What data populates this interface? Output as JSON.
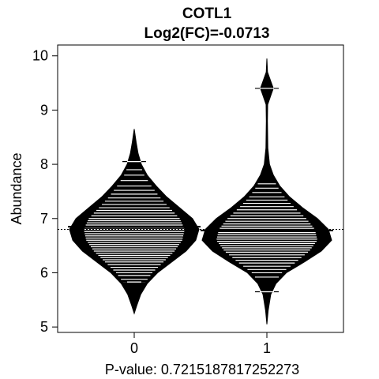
{
  "chart_data": {
    "type": "beanplot",
    "title": "COTL1",
    "subtitle": "Log2(FC)=-0.0713",
    "xlabel": "P-value: 0.7215187817252273",
    "ylabel": "Abundance",
    "categories": [
      "0",
      "1"
    ],
    "yticks": [
      5,
      6,
      7,
      8,
      9,
      10
    ],
    "ylim": [
      4.9,
      10.2
    ],
    "overall_mean": 6.8,
    "groups": [
      {
        "category": "0",
        "mean": 6.85,
        "min": 5.25,
        "max": 8.65,
        "density": [
          [
            5.25,
            0.0
          ],
          [
            5.4,
            0.04
          ],
          [
            5.6,
            0.1
          ],
          [
            5.8,
            0.2
          ],
          [
            6.0,
            0.36
          ],
          [
            6.2,
            0.58
          ],
          [
            6.4,
            0.8
          ],
          [
            6.6,
            0.95
          ],
          [
            6.8,
            1.0
          ],
          [
            7.0,
            0.9
          ],
          [
            7.2,
            0.7
          ],
          [
            7.4,
            0.5
          ],
          [
            7.6,
            0.34
          ],
          [
            7.8,
            0.2
          ],
          [
            8.0,
            0.11
          ],
          [
            8.2,
            0.06
          ],
          [
            8.4,
            0.03
          ],
          [
            8.65,
            0.0
          ]
        ],
        "observations": [
          5.83,
          5.88,
          5.95,
          6.0,
          6.05,
          6.1,
          6.15,
          6.2,
          6.24,
          6.28,
          6.32,
          6.36,
          6.4,
          6.44,
          6.48,
          6.52,
          6.56,
          6.6,
          6.64,
          6.68,
          6.72,
          6.76,
          6.8,
          6.84,
          6.88,
          6.92,
          6.96,
          7.0,
          7.05,
          7.1,
          7.15,
          7.2,
          7.26,
          7.32,
          7.38,
          7.45,
          7.52,
          7.6,
          7.7,
          7.8,
          7.9,
          8.05
        ],
        "extreme_ticks": [
          5.83,
          8.05
        ]
      },
      {
        "category": "1",
        "mean": 6.78,
        "min": 5.05,
        "max": 9.95,
        "density": [
          [
            5.05,
            0.0
          ],
          [
            5.3,
            0.02
          ],
          [
            5.6,
            0.06
          ],
          [
            5.8,
            0.14
          ],
          [
            6.0,
            0.3
          ],
          [
            6.2,
            0.58
          ],
          [
            6.4,
            0.84
          ],
          [
            6.6,
            1.0
          ],
          [
            6.8,
            0.95
          ],
          [
            7.0,
            0.78
          ],
          [
            7.2,
            0.55
          ],
          [
            7.4,
            0.35
          ],
          [
            7.6,
            0.2
          ],
          [
            7.8,
            0.1
          ],
          [
            8.0,
            0.04
          ],
          [
            8.3,
            0.015
          ],
          [
            8.8,
            0.008
          ],
          [
            9.1,
            0.012
          ],
          [
            9.3,
            0.07
          ],
          [
            9.4,
            0.1
          ],
          [
            9.5,
            0.07
          ],
          [
            9.7,
            0.01
          ],
          [
            9.95,
            0.0
          ]
        ],
        "observations": [
          5.65,
          5.92,
          6.0,
          6.06,
          6.12,
          6.18,
          6.23,
          6.28,
          6.33,
          6.38,
          6.42,
          6.46,
          6.5,
          6.54,
          6.58,
          6.62,
          6.66,
          6.7,
          6.74,
          6.78,
          6.82,
          6.86,
          6.9,
          6.95,
          7.0,
          7.05,
          7.1,
          7.16,
          7.22,
          7.28,
          7.34,
          7.4,
          7.48,
          7.56,
          7.64,
          9.4
        ],
        "extreme_ticks": [
          5.65,
          9.4
        ]
      }
    ]
  }
}
